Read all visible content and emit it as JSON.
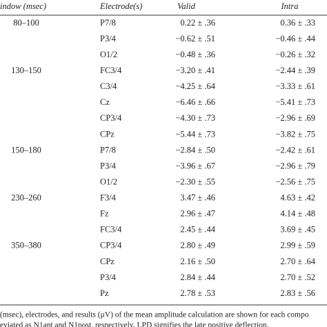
{
  "table": {
    "header": [
      "indow (msec)",
      "Electrode(s)",
      "Valid",
      "Intra"
    ],
    "groups": [
      {
        "window": "80–100",
        "rows": [
          [
            "P7/8",
            "0.22 ± .36",
            "0.36 ± .33"
          ],
          [
            "P3/4",
            "−0.62 ± .51",
            "−0.46 ± .44"
          ],
          [
            "O1/2",
            "−0.48 ± .36",
            "−0.26 ± .32"
          ]
        ]
      },
      {
        "window": "130–150",
        "rows": [
          [
            "FC3/4",
            "−3.20 ± .41",
            "−2.44 ± .39"
          ],
          [
            "C3/4",
            "−4.25 ± .64",
            "−3.33 ± .61"
          ],
          [
            "Cz",
            "−6.46 ± .66",
            "−5.41 ± .73"
          ],
          [
            "CP3/4",
            "−4.30 ± .73",
            "−2.96 ± .69"
          ],
          [
            "CPz",
            "−5.44 ± .73",
            "−3.82 ± .75"
          ]
        ]
      },
      {
        "window": "150–180",
        "rows": [
          [
            "P7/8",
            "−2.84 ± .50",
            "−2.42 ± .61"
          ],
          [
            "P3/4",
            "−3.96 ± .67",
            "−2.96 ± .79"
          ],
          [
            "O1/2",
            "−2.30 ± .55",
            "−2.56 ± .75"
          ]
        ]
      },
      {
        "window": "230–260",
        "rows": [
          [
            "F3/4",
            "3.47 ± .46",
            "4.63 ± .42"
          ],
          [
            "Fz",
            "2.96 ± .47",
            "4.14 ± .48"
          ],
          [
            "FC3/4",
            "2.45 ± .44",
            "3.69 ± .45"
          ]
        ]
      },
      {
        "window": "350–380",
        "rows": [
          [
            "CP3/4",
            "2.80 ± .49",
            "2.99 ± .59"
          ],
          [
            "CPz",
            "2.16 ± .50",
            "2.70 ± .64"
          ],
          [
            "P3/4",
            "2.84 ± .44",
            "2.70 ± .52"
          ],
          [
            "Pz",
            "2.78 ± .53",
            "2.83 ± .56"
          ]
        ]
      }
    ]
  },
  "caption": [
    "(msec), electrodes, and results (μV) of the mean amplitude calculation are shown for each compo",
    "eviated as N1ant and N1post, respectively. LPD signifies the late positive deflection."
  ]
}
